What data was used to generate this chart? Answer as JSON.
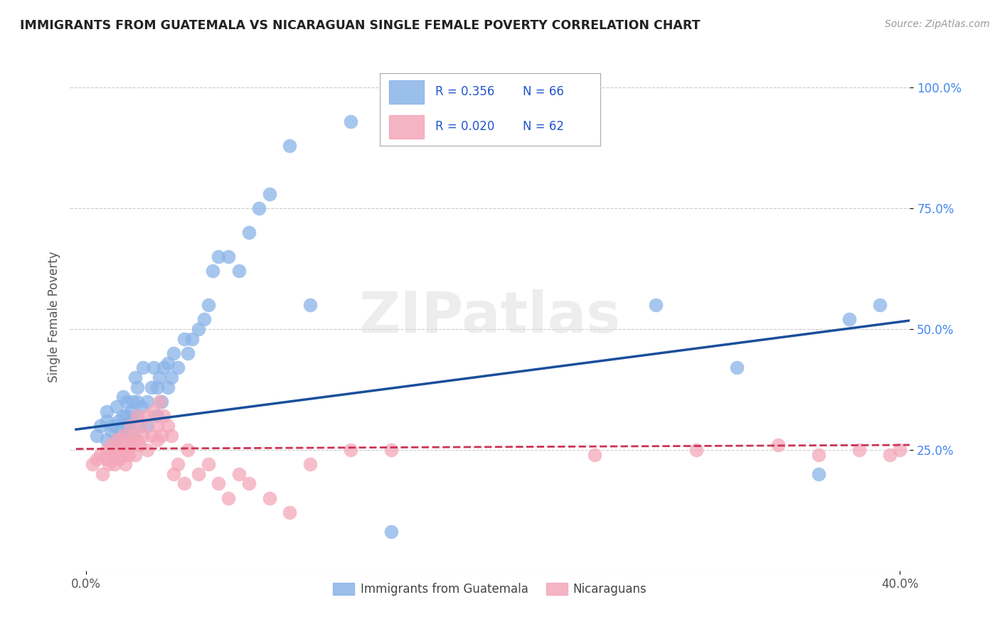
{
  "title": "IMMIGRANTS FROM GUATEMALA VS NICARAGUAN SINGLE FEMALE POVERTY CORRELATION CHART",
  "source": "Source: ZipAtlas.com",
  "ylabel": "Single Female Poverty",
  "legend_blue_label": "Immigrants from Guatemala",
  "legend_pink_label": "Nicaraguans",
  "legend_R_blue": "R = 0.356",
  "legend_N_blue": "N = 66",
  "legend_R_pink": "R = 0.020",
  "legend_N_pink": "N = 62",
  "blue_color": "#8AB4E8",
  "pink_color": "#F4A7B9",
  "blue_line_color": "#1A4F9C",
  "pink_line_color": "#CC3355",
  "watermark": "ZIPatlas",
  "xlim": [
    0.0,
    0.4
  ],
  "ylim": [
    0.0,
    1.05
  ],
  "yticks": [
    0.25,
    0.5,
    0.75,
    1.0
  ],
  "ytick_labels": [
    "25.0%",
    "50.0%",
    "75.0%",
    "100.0%"
  ],
  "xtick_positions": [
    0.0,
    0.4
  ],
  "xtick_labels": [
    "0.0%",
    "40.0%"
  ],
  "blue_scatter_x": [
    0.005,
    0.007,
    0.01,
    0.01,
    0.01,
    0.012,
    0.013,
    0.015,
    0.015,
    0.015,
    0.016,
    0.017,
    0.018,
    0.018,
    0.019,
    0.02,
    0.02,
    0.02,
    0.021,
    0.022,
    0.022,
    0.023,
    0.023,
    0.024,
    0.025,
    0.025,
    0.025,
    0.026,
    0.027,
    0.028,
    0.03,
    0.03,
    0.032,
    0.033,
    0.035,
    0.035,
    0.036,
    0.037,
    0.038,
    0.04,
    0.04,
    0.042,
    0.043,
    0.045,
    0.048,
    0.05,
    0.052,
    0.055,
    0.058,
    0.06,
    0.062,
    0.065,
    0.07,
    0.075,
    0.08,
    0.085,
    0.09,
    0.1,
    0.11,
    0.13,
    0.15,
    0.28,
    0.32,
    0.36,
    0.375,
    0.39
  ],
  "blue_scatter_y": [
    0.28,
    0.3,
    0.27,
    0.31,
    0.33,
    0.29,
    0.3,
    0.27,
    0.3,
    0.34,
    0.31,
    0.28,
    0.32,
    0.36,
    0.3,
    0.28,
    0.32,
    0.35,
    0.3,
    0.31,
    0.33,
    0.35,
    0.28,
    0.4,
    0.32,
    0.35,
    0.38,
    0.3,
    0.34,
    0.42,
    0.3,
    0.35,
    0.38,
    0.42,
    0.32,
    0.38,
    0.4,
    0.35,
    0.42,
    0.38,
    0.43,
    0.4,
    0.45,
    0.42,
    0.48,
    0.45,
    0.48,
    0.5,
    0.52,
    0.55,
    0.62,
    0.65,
    0.65,
    0.62,
    0.7,
    0.75,
    0.78,
    0.88,
    0.55,
    0.93,
    0.08,
    0.55,
    0.42,
    0.2,
    0.52,
    0.55
  ],
  "pink_scatter_x": [
    0.003,
    0.005,
    0.007,
    0.008,
    0.01,
    0.01,
    0.011,
    0.012,
    0.013,
    0.014,
    0.015,
    0.015,
    0.016,
    0.017,
    0.018,
    0.018,
    0.019,
    0.02,
    0.02,
    0.021,
    0.022,
    0.022,
    0.023,
    0.024,
    0.025,
    0.025,
    0.026,
    0.027,
    0.028,
    0.03,
    0.03,
    0.032,
    0.033,
    0.035,
    0.035,
    0.036,
    0.037,
    0.038,
    0.04,
    0.042,
    0.043,
    0.045,
    0.048,
    0.05,
    0.055,
    0.06,
    0.065,
    0.07,
    0.075,
    0.08,
    0.09,
    0.1,
    0.11,
    0.13,
    0.15,
    0.25,
    0.3,
    0.34,
    0.36,
    0.38,
    0.395,
    0.4
  ],
  "pink_scatter_y": [
    0.22,
    0.23,
    0.24,
    0.2,
    0.23,
    0.25,
    0.22,
    0.26,
    0.24,
    0.22,
    0.25,
    0.27,
    0.23,
    0.26,
    0.24,
    0.28,
    0.22,
    0.25,
    0.27,
    0.24,
    0.26,
    0.3,
    0.28,
    0.24,
    0.27,
    0.32,
    0.26,
    0.3,
    0.28,
    0.25,
    0.32,
    0.28,
    0.33,
    0.27,
    0.3,
    0.35,
    0.28,
    0.32,
    0.3,
    0.28,
    0.2,
    0.22,
    0.18,
    0.25,
    0.2,
    0.22,
    0.18,
    0.15,
    0.2,
    0.18,
    0.15,
    0.12,
    0.22,
    0.25,
    0.25,
    0.24,
    0.25,
    0.26,
    0.24,
    0.25,
    0.24,
    0.25
  ]
}
